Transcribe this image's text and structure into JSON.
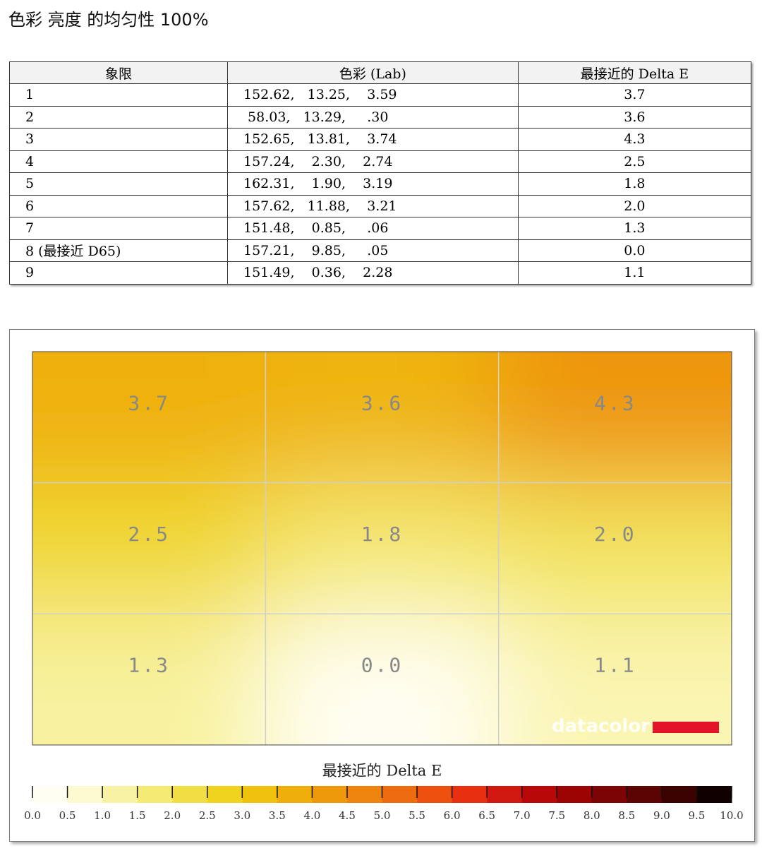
{
  "title": "色彩 亮度 的均匀性 100%",
  "table": {
    "header": [
      "象限",
      "色彩 (Lab)",
      "最接近的 Delta E"
    ],
    "rows": [
      [
        "1",
        "152.62,   13.25,    3.59",
        "3.7"
      ],
      [
        "2",
        " 58.03,   13.29,     .30",
        "3.6"
      ],
      [
        "3",
        "152.65,   13.81,    3.74",
        "4.3"
      ],
      [
        "4",
        "157.24,    2.30,    2.74",
        "2.5"
      ],
      [
        "5",
        "162.31,    1.90,    3.19",
        "1.8"
      ],
      [
        "6",
        "157.62,   11.88,    3.21",
        "2.0"
      ],
      [
        "7",
        "151.48,    0.85,     .06",
        "1.3"
      ],
      [
        "8 (最接近 D65)",
        "157.21,    9.85,     .05",
        "0.0"
      ],
      [
        "9",
        "151.49,    0.36,    2.28",
        "1.1"
      ]
    ]
  },
  "chart_data": {
    "type": "heatmap",
    "values": [
      [
        3.7,
        3.6,
        4.3
      ],
      [
        2.5,
        1.8,
        2.0
      ],
      [
        1.3,
        0.0,
        1.1
      ]
    ],
    "value_labels": [
      [
        "3.7",
        "3.6",
        "4.3"
      ],
      [
        "2.5",
        "1.8",
        "2.0"
      ],
      [
        "1.3",
        "0.0",
        "1.1"
      ]
    ],
    "watermark": "datacolor",
    "colorbar_title": "最接近的 Delta E",
    "clim": [
      0,
      10
    ],
    "colorscale": [
      "#fffef2",
      "#fdfad2",
      "#f8f3a4",
      "#f4ea74",
      "#f0de44",
      "#efd31e",
      "#efc20e",
      "#efae0a",
      "#ee980c",
      "#ee840e",
      "#ee6c10",
      "#ee5010",
      "#e83010",
      "#d01810",
      "#b80808",
      "#9c0404",
      "#7c0404",
      "#5c0404",
      "#3c0202",
      "#100000"
    ],
    "cticks": [
      {
        "value": 0,
        "label": "0.0"
      },
      {
        "value": 0.5,
        "label": "0.5"
      },
      {
        "value": 1,
        "label": "1.0"
      },
      {
        "value": 1.5,
        "label": "1.5"
      },
      {
        "value": 2,
        "label": "2.0"
      },
      {
        "value": 2.5,
        "label": "2.5"
      },
      {
        "value": 3,
        "label": "3.0"
      },
      {
        "value": 3.5,
        "label": "3.5"
      },
      {
        "value": 4,
        "label": "4.0"
      },
      {
        "value": 4.5,
        "label": "4.5"
      },
      {
        "value": 5,
        "label": "5.0"
      },
      {
        "value": 5.5,
        "label": "5.5"
      },
      {
        "value": 6,
        "label": "6.0"
      },
      {
        "value": 6.5,
        "label": "6.5"
      },
      {
        "value": 7,
        "label": "7.0"
      },
      {
        "value": 7.5,
        "label": "7.5"
      },
      {
        "value": 8,
        "label": "8.0"
      },
      {
        "value": 8.5,
        "label": "8.5"
      },
      {
        "value": 9,
        "label": "9.0"
      },
      {
        "value": 9.5,
        "label": "9.5"
      },
      {
        "value": 10,
        "label": "10.0"
      }
    ]
  }
}
